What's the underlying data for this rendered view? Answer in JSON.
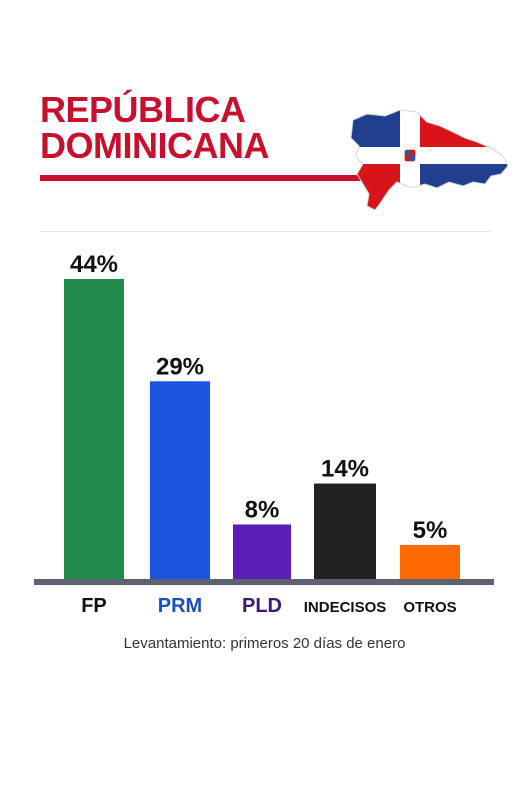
{
  "header": {
    "title_line1": "REPÚBLICA",
    "title_line2": "DOMINICANA"
  },
  "icons": {
    "map": "dominican-republic-flag-map-icon"
  },
  "colors": {
    "title": "#c8102e",
    "axis": "#5e6270"
  },
  "chart_data": {
    "type": "bar",
    "title": "",
    "xlabel": "",
    "ylabel": "",
    "categories": [
      "FP",
      "PRM",
      "PLD",
      "INDECISOS",
      "OTROS"
    ],
    "values": [
      44,
      29,
      8,
      14,
      5
    ],
    "value_labels": [
      "44%",
      "29%",
      "8%",
      "14%",
      "5%"
    ],
    "bar_colors": [
      "#1f8a4c",
      "#1b55e0",
      "#5b1fb5",
      "#222222",
      "#ff6a00"
    ],
    "label_colors": [
      "#111111",
      "#1b4fbf",
      "#3a1a7a",
      "#111111",
      "#111111"
    ],
    "ylim": [
      0,
      44
    ],
    "grid": false,
    "legend": "none"
  },
  "footnote": "Levantamiento: primeros 20 días de enero"
}
